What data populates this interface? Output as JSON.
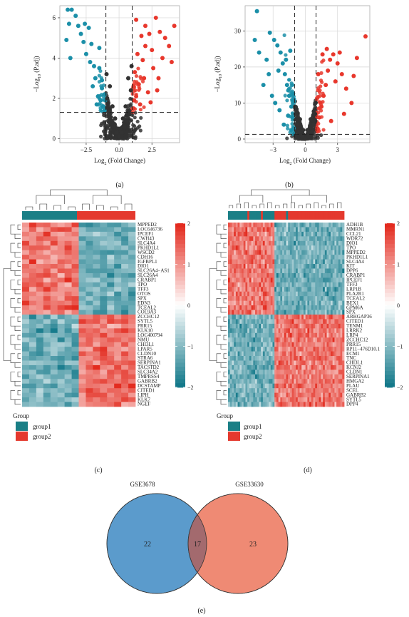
{
  "panels": {
    "a": {
      "caption": "(a)",
      "xlabel": "Log2 (Fold Change)",
      "ylabel": "−Log10 (P.adj)",
      "xticks": [
        "−2.5",
        "0.0",
        "2.5"
      ],
      "yticks": [
        "0",
        "2",
        "4",
        "6"
      ]
    },
    "b": {
      "caption": "(b)",
      "xlabel": "Log2 (Fold Change)",
      "ylabel": "−Log10 (P.adj)",
      "xticks": [
        "−3",
        "0",
        "3"
      ],
      "yticks": [
        "0",
        "10",
        "20",
        "30"
      ]
    },
    "c": {
      "caption": "(c)",
      "genes": [
        "MPPED2",
        "LOC646736",
        "IPCEF1",
        "CWH43",
        "SLC4A4",
        "PKHD1L1",
        "WSCD2",
        "CDH16",
        "IGFBPL1",
        "DIO1",
        "SLC26A4−AS1",
        "SLC26A4",
        "CRABP1",
        "TPO",
        "TFF3",
        "OTOS",
        "SPX",
        "EDN3",
        "TCEAL2",
        "COL9A3",
        "ZCCHC12",
        "SYTL5",
        "PRR15",
        "KLK10",
        "LOC400794",
        "NMU",
        "CHI3L1",
        "LPAR5",
        "CLDN10",
        "STRA6",
        "SERPINA1",
        "TACSTD2",
        "SLC34A2",
        "TMPRSS4",
        "GABRB2",
        "DCSTAMP",
        "CITED1",
        "LIPH",
        "KLK7",
        "NGEF"
      ],
      "legend_ticks": [
        "2",
        "1",
        "0",
        "−1",
        "−2"
      ],
      "group_title": "Group",
      "groups": [
        "group1",
        "group2"
      ]
    },
    "d": {
      "caption": "(d)",
      "genes": [
        "ADH1B",
        "MMRN1",
        "CCL21",
        "WDR72",
        "DIO1",
        "TPO",
        "MPPED2",
        "PKHD1L1",
        "SLC4A4",
        "KIT",
        "DPP6",
        "CRABP1",
        "IPCEF1",
        "TFF3",
        "LRP1B",
        "PLA2R1",
        "TCEAL2",
        "BEX1",
        "GPM6A",
        "SPX",
        "ARHGAP36",
        "CITED1",
        "TENM1",
        "LRRK2",
        "LRP4",
        "ZCCHC12",
        "PRR15",
        "RP11−476D10.1",
        "ECM1",
        "TNC",
        "CHI3L1",
        "KCNJ2",
        "CLDN1",
        "SERPINA1",
        "HMGA2",
        "PLAU",
        "SCEL",
        "GABRB2",
        "SYTL5",
        "DPP4"
      ],
      "legend_ticks": [
        "2",
        "1",
        "0",
        "−1",
        "−2"
      ],
      "group_title": "Group",
      "groups": [
        "group1",
        "group2"
      ]
    },
    "e": {
      "caption": "(e)",
      "set_a": "GSE3678",
      "set_b": "GSE33630",
      "only_a": "22",
      "both": "17",
      "only_b": "23"
    }
  },
  "colors": {
    "down": "#1b8fa8",
    "up": "#e8372c",
    "ns": "#333333",
    "group1": "#1a7f86",
    "group2": "#e4392e",
    "heat_high": "#e32b1f",
    "heat_low": "#14798a",
    "venn_a": "#5b9bcc",
    "venn_b": "#ef8a74",
    "venn_overlap": "#a36a6e"
  },
  "chart_data": [
    {
      "type": "scatter",
      "panel": "a",
      "xlabel": "Log2 (Fold Change)",
      "ylabel": "−Log10 (P.adj)",
      "xlim": [
        -4.5,
        4.6
      ],
      "ylim": [
        -0.2,
        6.6
      ],
      "fc_threshold": 1,
      "p_threshold": 1.3,
      "series": [
        {
          "values": [
            [
              -3.9,
              6.4
            ],
            [
              -3.6,
              6.4
            ],
            [
              -3.3,
              6.1
            ],
            [
              -3.1,
              5.6
            ],
            [
              -2.9,
              5.2
            ],
            [
              -3.8,
              5.7
            ],
            [
              -4.0,
              4.9
            ],
            [
              -3.7,
              4.0
            ],
            [
              -2.6,
              5.7
            ],
            [
              -2.3,
              5.5
            ],
            [
              -2.1,
              4.7
            ],
            [
              -2.5,
              4.2
            ],
            [
              -1.9,
              3.6
            ],
            [
              -1.5,
              3.5
            ],
            [
              -1.3,
              2.9
            ],
            [
              -1.1,
              2.2
            ],
            [
              -1.2,
              1.6
            ],
            [
              -1.6,
              2.1
            ],
            [
              -2.0,
              2.6
            ],
            [
              -1.4,
              1.9
            ],
            [
              -1.8,
              3.0
            ],
            [
              -1.1,
              1.4
            ],
            [
              -2.2,
              3.8
            ],
            [
              -1.5,
              4.5
            ],
            [
              -2.7,
              4.8
            ],
            [
              -1.3,
              2.5
            ],
            [
              -1.7,
              1.7
            ],
            [
              -1.05,
              1.9
            ]
          ]
        },
        {
          "values": [
            [
              1.1,
              1.5
            ],
            [
              1.3,
              2.1
            ],
            [
              1.5,
              2.7
            ],
            [
              1.2,
              3.3
            ],
            [
              1.8,
              3.9
            ],
            [
              2.0,
              4.6
            ],
            [
              2.3,
              5.2
            ],
            [
              2.0,
              5.6
            ],
            [
              2.8,
              6.0
            ],
            [
              3.1,
              5.3
            ],
            [
              3.5,
              5.0
            ],
            [
              4.2,
              5.6
            ],
            [
              3.8,
              4.6
            ],
            [
              3.3,
              4.0
            ],
            [
              2.6,
              3.5
            ],
            [
              1.6,
              1.7
            ],
            [
              2.2,
              2.3
            ],
            [
              1.4,
              4.2
            ],
            [
              1.9,
              3.0
            ],
            [
              1.1,
              2.6
            ],
            [
              2.5,
              4.4
            ],
            [
              3.0,
              3.0
            ],
            [
              1.7,
              5.1
            ],
            [
              2.4,
              1.8
            ],
            [
              1.3,
              5.9
            ],
            [
              4.0,
              3.8
            ],
            [
              1.15,
              1.9
            ],
            [
              2.9,
              2.4
            ]
          ]
        },
        {
          "values": [
            [
              0,
              0.1
            ],
            [
              0.2,
              0.3
            ],
            [
              -0.2,
              0.3
            ],
            [
              0.4,
              0.6
            ],
            [
              -0.4,
              0.6
            ],
            [
              0.6,
              0.9
            ],
            [
              -0.6,
              0.9
            ],
            [
              0.8,
              1.2
            ],
            [
              -0.8,
              1.2
            ],
            [
              0.3,
              1.0
            ],
            [
              -0.3,
              1.0
            ],
            [
              0.9,
              2.4
            ],
            [
              -0.9,
              2.0
            ],
            [
              0.7,
              3.0
            ],
            [
              -0.7,
              2.6
            ],
            [
              0.5,
              1.6
            ],
            [
              -0.5,
              1.6
            ],
            [
              0.1,
              0.5
            ],
            [
              -0.1,
              0.5
            ],
            [
              0.95,
              3.6
            ],
            [
              -0.95,
              3.2
            ]
          ]
        }
      ]
    },
    {
      "type": "scatter",
      "panel": "b",
      "xlabel": "Log2 (Fold Change)",
      "ylabel": "−Log10 (P.adj)",
      "xlim": [
        -5.6,
        6.0
      ],
      "ylim": [
        -1,
        37
      ],
      "fc_threshold": 1,
      "p_threshold": 1.3,
      "series": [
        {
          "values": [
            [
              -4.5,
              35.5
            ],
            [
              -4.7,
              27.5
            ],
            [
              -4.3,
              24.0
            ],
            [
              -3.9,
              15.0
            ],
            [
              -3.3,
              29.5
            ],
            [
              -2.9,
              27.5
            ],
            [
              -2.6,
              26.0
            ],
            [
              -2.3,
              24.0
            ],
            [
              -3.6,
              22.0
            ],
            [
              -2.1,
              21.0
            ],
            [
              -1.9,
              18.0
            ],
            [
              -1.7,
              15.0
            ],
            [
              -1.5,
              12.0
            ],
            [
              -1.3,
              9.0
            ],
            [
              -1.2,
              6.0
            ],
            [
              -1.1,
              3.0
            ],
            [
              -2.4,
              8.0
            ],
            [
              -2.8,
              10.0
            ],
            [
              -3.1,
              12.0
            ],
            [
              -3.4,
              18.0
            ],
            [
              -2.5,
              19.0
            ],
            [
              -1.8,
              22.0
            ],
            [
              -1.4,
              24.5
            ],
            [
              -2.0,
              4.0
            ],
            [
              -1.6,
              6.5
            ]
          ]
        },
        {
          "values": [
            [
              1.1,
              3.0
            ],
            [
              1.3,
              6.0
            ],
            [
              1.5,
              9.0
            ],
            [
              1.7,
              12.0
            ],
            [
              1.9,
              15.0
            ],
            [
              2.1,
              19.0
            ],
            [
              2.3,
              22.0
            ],
            [
              2.6,
              23.5
            ],
            [
              3.0,
              21.0
            ],
            [
              3.4,
              18.0
            ],
            [
              3.8,
              14.0
            ],
            [
              4.3,
              10.0
            ],
            [
              5.6,
              28.5
            ],
            [
              4.8,
              22.5
            ],
            [
              3.2,
              24.0
            ],
            [
              2.0,
              25.0
            ],
            [
              1.6,
              23.5
            ],
            [
              2.8,
              16.0
            ],
            [
              3.6,
              7.0
            ],
            [
              2.4,
              5.0
            ],
            [
              1.2,
              18.0
            ],
            [
              4.5,
              17.5
            ]
          ]
        },
        {
          "values": [
            [
              0,
              0.2
            ],
            [
              0.3,
              0.8
            ],
            [
              -0.3,
              0.8
            ],
            [
              0.6,
              2.0
            ],
            [
              -0.6,
              2.0
            ],
            [
              0.8,
              4.0
            ],
            [
              -0.8,
              4.0
            ],
            [
              0.9,
              7.0
            ],
            [
              -0.9,
              7.0
            ],
            [
              0.5,
              5.5
            ],
            [
              -0.5,
              5.5
            ],
            [
              0.2,
              2.5
            ],
            [
              -0.2,
              2.5
            ],
            [
              0.95,
              10.0
            ],
            [
              -0.95,
              9.0
            ]
          ]
        }
      ]
    }
  ]
}
